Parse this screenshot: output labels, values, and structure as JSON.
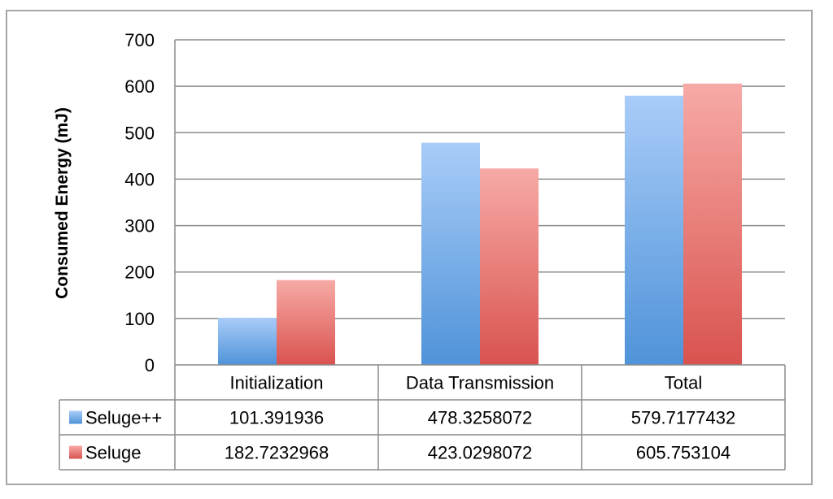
{
  "chart_data": {
    "type": "bar",
    "title": "",
    "xlabel": "",
    "ylabel": "Consumed Energy (mJ)",
    "ylim": [
      0,
      700
    ],
    "yticks": [
      0,
      100,
      200,
      300,
      400,
      500,
      600,
      700
    ],
    "grid": true,
    "legend_position": "data-table",
    "categories": [
      "Initialization",
      "Data Transmission",
      "Total"
    ],
    "series": [
      {
        "name": "Seluge++",
        "color_top": "#a9ccf8",
        "color_bottom": "#4f93d9",
        "values": [
          101.391936,
          478.3258072,
          579.7177432
        ],
        "labels": [
          "101.391936",
          "478.3258072",
          "579.7177432"
        ]
      },
      {
        "name": "Seluge",
        "color_top": "#f7aaa6",
        "color_bottom": "#d9534f",
        "values": [
          182.7232968,
          423.0298072,
          605.753104
        ],
        "labels": [
          "182.7232968",
          "423.0298072",
          "605.753104"
        ]
      }
    ]
  }
}
